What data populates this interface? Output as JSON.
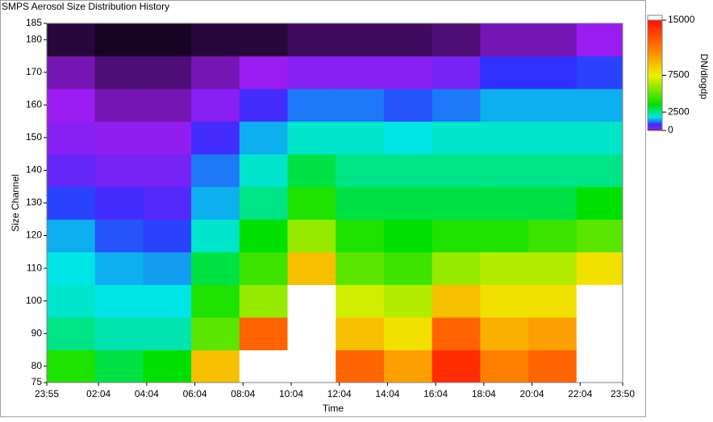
{
  "chart_data": {
    "type": "heatmap",
    "title": "SMPS Aerosol Size Distribution History",
    "xlabel": "Time",
    "ylabel": "Size Channel",
    "colorbar_label": "DN/dlogdp",
    "x": [
      0,
      120,
      240,
      360,
      480,
      600,
      720,
      840,
      960,
      1080,
      1200,
      1320
    ],
    "y": [
      75,
      85,
      95,
      105,
      115,
      125,
      135,
      145,
      155,
      165,
      175
    ],
    "z": [
      [
        4000,
        3000,
        3500,
        9000,
        16000,
        16000,
        12000,
        10000,
        14000,
        11000,
        12000,
        16000
      ],
      [
        2500,
        2200,
        2200,
        5000,
        12000,
        16000,
        9000,
        8000,
        12000,
        9500,
        10000,
        16000
      ],
      [
        2000,
        1800,
        1800,
        4000,
        6000,
        16000,
        7000,
        6500,
        9000,
        8000,
        8000,
        16000
      ],
      [
        1800,
        1500,
        1400,
        3000,
        4500,
        9000,
        5000,
        4500,
        6000,
        6500,
        6500,
        8000
      ],
      [
        1500,
        1000,
        900,
        2000,
        3500,
        6000,
        4000,
        3500,
        4000,
        4000,
        4500,
        5000
      ],
      [
        900,
        700,
        600,
        1500,
        2500,
        4000,
        3000,
        3000,
        3000,
        3000,
        3000,
        3500
      ],
      [
        500,
        400,
        400,
        1200,
        2000,
        3000,
        2500,
        2500,
        2500,
        2500,
        2500,
        2500
      ],
      [
        300,
        250,
        250,
        700,
        1500,
        2000,
        2000,
        1800,
        2000,
        2000,
        2000,
        2000
      ],
      [
        200,
        150,
        150,
        300,
        700,
        1200,
        1200,
        1000,
        1200,
        1500,
        1500,
        1500
      ],
      [
        150,
        100,
        100,
        150,
        200,
        300,
        300,
        300,
        400,
        800,
        800,
        900
      ],
      [
        50,
        30,
        30,
        50,
        50,
        80,
        80,
        80,
        100,
        150,
        150,
        200
      ]
    ],
    "xlim": [
      0,
      1435
    ],
    "ylim": [
      75,
      185
    ],
    "xticks": [
      {
        "value": 0,
        "label": "23:55"
      },
      {
        "value": 129,
        "label": "02:04"
      },
      {
        "value": 249,
        "label": "04:04"
      },
      {
        "value": 369,
        "label": "06:04"
      },
      {
        "value": 489,
        "label": "08:04"
      },
      {
        "value": 609,
        "label": "10:04"
      },
      {
        "value": 729,
        "label": "12:04"
      },
      {
        "value": 849,
        "label": "14:04"
      },
      {
        "value": 969,
        "label": "16:04"
      },
      {
        "value": 1089,
        "label": "18:04"
      },
      {
        "value": 1209,
        "label": "20:04"
      },
      {
        "value": 1329,
        "label": "22:04"
      },
      {
        "value": 1435,
        "label": "23:50"
      }
    ],
    "yticks": [
      75,
      80,
      90,
      100,
      110,
      120,
      130,
      140,
      150,
      160,
      170,
      180,
      185
    ],
    "clim": [
      0,
      15000
    ],
    "cticks": [
      0,
      2500,
      7500,
      15000
    ],
    "colormap": [
      {
        "value": 0,
        "color": "#000000"
      },
      {
        "value": 200,
        "color": "#9a1cf0"
      },
      {
        "value": 800,
        "color": "#3030ff"
      },
      {
        "value": 1800,
        "color": "#00e6e6"
      },
      {
        "value": 3500,
        "color": "#00e000"
      },
      {
        "value": 7500,
        "color": "#f0f000"
      },
      {
        "value": 11000,
        "color": "#ff8000"
      },
      {
        "value": 15000,
        "color": "#ff1000"
      }
    ],
    "over_color": "#ffffff"
  }
}
